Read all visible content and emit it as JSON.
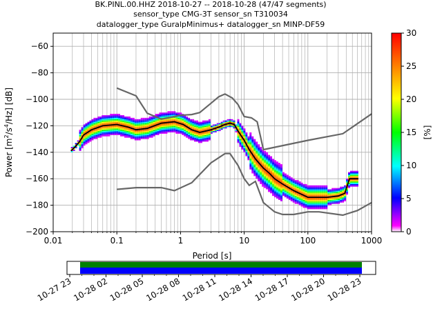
{
  "header": {
    "line1": "BK.PINL.00.HHZ   2018-10-27 -- 2018-10-28  (47/47 segments)",
    "line2": "sensor_type CMG-3T sensor_sn T310034",
    "line3": "datalogger_type GuralpMinimus+ datalogger_sn MINP-DF59"
  },
  "chart_data": [
    {
      "type": "heatmap",
      "title": "",
      "xlabel": "Period [s]",
      "xscale": "log",
      "xlim": [
        0.01,
        1000
      ],
      "x_ticks": [
        0.01,
        0.1,
        1,
        10,
        100,
        1000
      ],
      "x_tick_labels": [
        "0.01",
        "0.1",
        "1",
        "10",
        "100",
        "1000"
      ],
      "ylabel": "Power [m²/s⁴/Hz] [dB]",
      "ylabel_base": "Power [m",
      "ylabel_exp1": "2",
      "ylabel_mid": "/s",
      "ylabel_exp2": "4",
      "ylabel_tail": "/Hz] [dB]",
      "ylim": [
        -200,
        -50
      ],
      "y_ticks": [
        -60,
        -80,
        -100,
        -120,
        -140,
        -160,
        -180,
        -200
      ],
      "grid": true,
      "mean_curve": [
        [
          0.019,
          -139
        ],
        [
          0.022,
          -136
        ],
        [
          0.026,
          -132
        ],
        [
          0.03,
          -127
        ],
        [
          0.04,
          -123
        ],
        [
          0.06,
          -120
        ],
        [
          0.1,
          -119
        ],
        [
          0.15,
          -121
        ],
        [
          0.2,
          -123
        ],
        [
          0.3,
          -122
        ],
        [
          0.5,
          -118
        ],
        [
          0.8,
          -117
        ],
        [
          1.1,
          -119
        ],
        [
          1.5,
          -123
        ],
        [
          2,
          -125
        ],
        [
          3,
          -123
        ],
        [
          4,
          -121
        ],
        [
          5,
          -119
        ],
        [
          6,
          -118
        ],
        [
          7,
          -119
        ],
        [
          8,
          -124
        ],
        [
          10,
          -131
        ],
        [
          12,
          -138
        ],
        [
          15,
          -145
        ],
        [
          20,
          -152
        ],
        [
          25,
          -156
        ],
        [
          30,
          -160
        ],
        [
          40,
          -164
        ],
        [
          60,
          -169
        ],
        [
          100,
          -174
        ],
        [
          150,
          -174
        ],
        [
          200,
          -174
        ],
        [
          300,
          -173
        ],
        [
          380,
          -171
        ],
        [
          450,
          -160
        ],
        [
          620,
          -160
        ]
      ],
      "nhnm": [
        [
          0.1,
          -91.5
        ],
        [
          0.2,
          -97.4
        ],
        [
          0.3,
          -110.5
        ],
        [
          0.5,
          -115
        ],
        [
          0.8,
          -113
        ],
        [
          1,
          -112.1
        ],
        [
          1.5,
          -111.5
        ],
        [
          2,
          -110
        ],
        [
          3,
          -103
        ],
        [
          4,
          -98
        ],
        [
          5,
          -96
        ],
        [
          6.5,
          -99
        ],
        [
          8,
          -104
        ],
        [
          10,
          -113
        ],
        [
          13,
          -114
        ],
        [
          16,
          -117
        ],
        [
          20,
          -138
        ],
        [
          100,
          -131
        ],
        [
          354,
          -126
        ],
        [
          1000,
          -111
        ]
      ],
      "nlnm": [
        [
          0.1,
          -168
        ],
        [
          0.2,
          -166.7
        ],
        [
          0.5,
          -166.7
        ],
        [
          0.8,
          -169
        ],
        [
          1.5,
          -163
        ],
        [
          3,
          -148
        ],
        [
          5,
          -141
        ],
        [
          6,
          -141
        ],
        [
          8,
          -150
        ],
        [
          10,
          -160
        ],
        [
          12,
          -165
        ],
        [
          15,
          -162
        ],
        [
          20,
          -178
        ],
        [
          30,
          -185
        ],
        [
          40,
          -187
        ],
        [
          60,
          -187
        ],
        [
          100,
          -185
        ],
        [
          150,
          -185
        ],
        [
          354,
          -187.5
        ],
        [
          600,
          -184
        ],
        [
          1000,
          -178
        ]
      ],
      "colorbar": {
        "label": "[%]",
        "range": [
          0,
          30
        ],
        "ticks": [
          0,
          5,
          10,
          15,
          20,
          25,
          30
        ],
        "colors": [
          "#ffffff",
          "#ff00ff",
          "#0000ff",
          "#00ffff",
          "#00ff00",
          "#ffff00",
          "#ff0000"
        ]
      }
    },
    {
      "type": "timeline",
      "tick_labels": [
        "10-27 23",
        "10-28 02",
        "10-28 05",
        "10-28 08",
        "10-28 11",
        "10-28 14",
        "10-28 17",
        "10-28 20",
        "10-28 23"
      ],
      "coverage_colors": {
        "top": "#008000",
        "bottom": "#0000ff"
      }
    }
  ]
}
